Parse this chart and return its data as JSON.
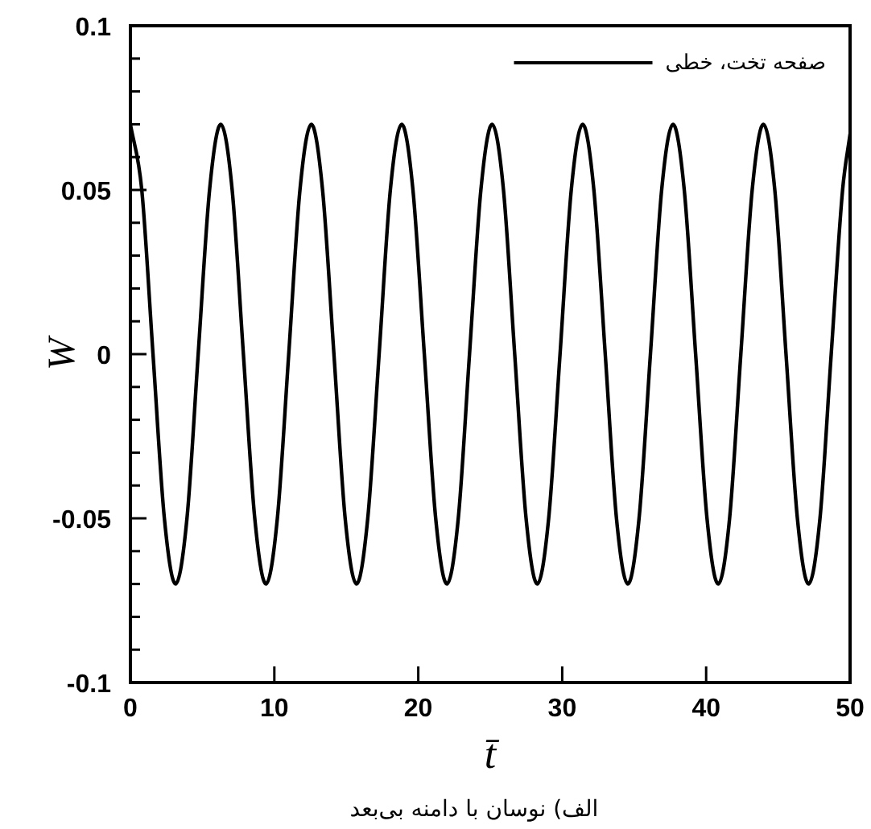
{
  "chart_data": {
    "type": "line",
    "xlabel": "t̄",
    "ylabel": "W",
    "annotations": [
      "الف) نوسان با دامنه بی‌بعد"
    ],
    "xlim": [
      0,
      50
    ],
    "xticks": [
      0,
      10,
      20,
      30,
      40,
      50
    ],
    "ylim": [
      -0.1,
      0.1
    ],
    "yticks": [
      -0.1,
      {
        "value": -0.09,
        "label": null
      },
      {
        "value": -0.08,
        "label": null
      },
      {
        "value": -0.07,
        "label": null
      },
      {
        "value": -0.06,
        "label": null
      },
      -0.05,
      {
        "value": -0.04,
        "label": null
      },
      {
        "value": -0.03,
        "label": null
      },
      {
        "value": -0.02,
        "label": null
      },
      {
        "value": -0.01,
        "label": null
      },
      0,
      {
        "value": 0.01,
        "label": null
      },
      {
        "value": 0.02,
        "label": null
      },
      {
        "value": 0.03,
        "label": null
      },
      {
        "value": 0.04,
        "label": null
      },
      0.05,
      {
        "value": 0.06,
        "label": null
      },
      {
        "value": 0.07,
        "label": null
      },
      {
        "value": 0.08,
        "label": null
      },
      {
        "value": 0.09,
        "label": null
      },
      0.1
    ],
    "legend": "top right",
    "grid": false,
    "series": [
      {
        "name": "صفحه تخت، خطی",
        "color": "#000000",
        "x": [
          0,
          0.79,
          1.57,
          2.36,
          3.14,
          3.93,
          4.71,
          5.5,
          6.28,
          7.07,
          7.85,
          8.64,
          9.42,
          10.21,
          11.0,
          11.78,
          12.57,
          13.35,
          14.14,
          14.92,
          15.71,
          16.49,
          17.28,
          18.06,
          18.85,
          19.63,
          20.42,
          21.21,
          21.99,
          22.78,
          23.56,
          24.35,
          25.13,
          25.92,
          26.7,
          27.49,
          28.27,
          29.06,
          29.85,
          30.63,
          31.42,
          32.2,
          32.99,
          33.77,
          34.56,
          35.34,
          36.13,
          36.91,
          37.7,
          38.48,
          39.27,
          40.06,
          40.84,
          41.63,
          42.41,
          43.2,
          43.98,
          44.77,
          45.55,
          46.34,
          47.12,
          47.91,
          48.69,
          49.48,
          50
        ],
        "values": [
          0.07,
          0.05,
          0,
          -0.05,
          -0.07,
          -0.05,
          0,
          0.05,
          0.07,
          0.05,
          0,
          -0.05,
          -0.07,
          -0.05,
          0,
          0.05,
          0.07,
          0.05,
          0,
          -0.05,
          -0.07,
          -0.05,
          0,
          0.05,
          0.07,
          0.05,
          0,
          -0.05,
          -0.07,
          -0.05,
          0,
          0.05,
          0.07,
          0.05,
          0,
          -0.05,
          -0.07,
          -0.05,
          0,
          0.05,
          0.07,
          0.05,
          0,
          -0.05,
          -0.07,
          -0.05,
          0,
          0.05,
          0.07,
          0.05,
          0,
          -0.05,
          -0.07,
          -0.05,
          0,
          0.05,
          0.07,
          0.05,
          0,
          -0.05,
          -0.07,
          -0.05,
          0,
          0.05,
          0.067
        ]
      }
    ]
  }
}
